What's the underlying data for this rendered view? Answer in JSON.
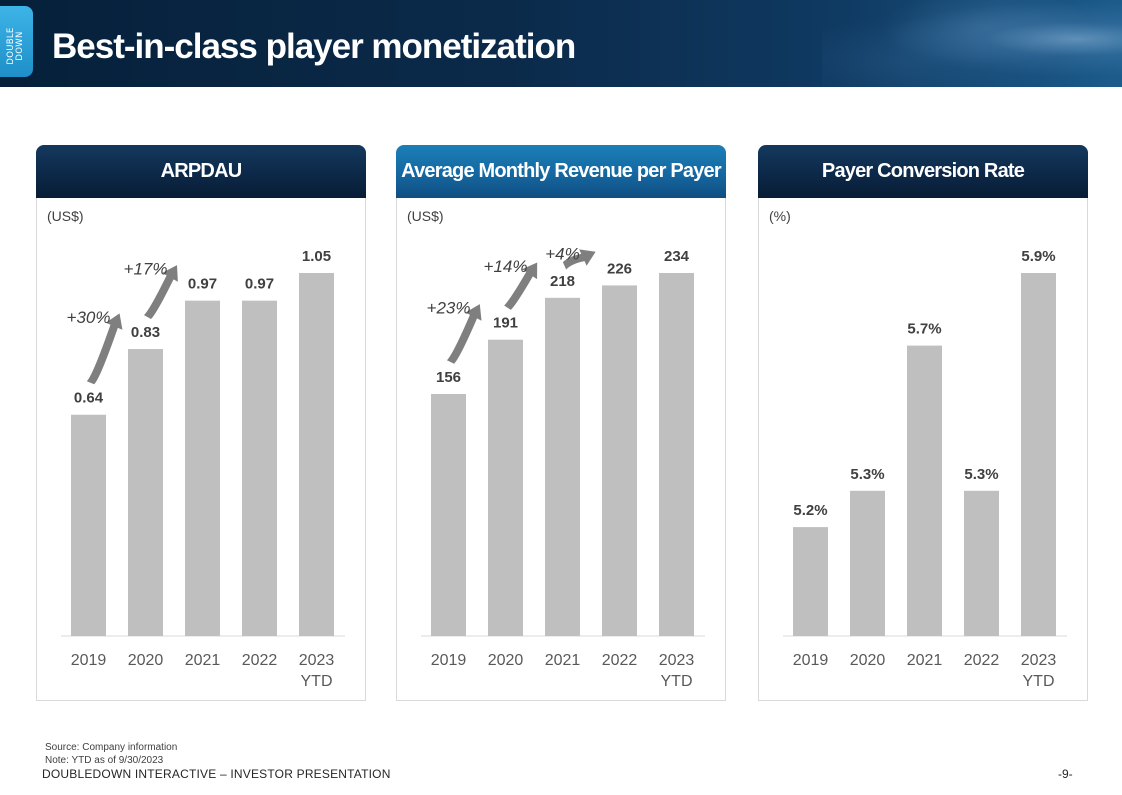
{
  "logo": {
    "text_line1": "DOUBLE",
    "text_line2": "DOWN"
  },
  "header": {
    "title": "Best-in-class player monetization"
  },
  "colors": {
    "bar": "#bfbfbf",
    "header_navy": "#0c2746",
    "header_blue": "#1567a0",
    "arrow": "#7f7f7f"
  },
  "chart_data": [
    {
      "type": "bar",
      "title": "ARPDAU",
      "unit": "(US$)",
      "categories": [
        "2019",
        "2020",
        "2021",
        "2022",
        "2023\nYTD"
      ],
      "values": [
        0.64,
        0.83,
        0.97,
        0.97,
        1.05
      ],
      "labels": [
        "0.64",
        "0.83",
        "0.97",
        "0.97",
        "1.05"
      ],
      "annotations": [
        {
          "from": 0,
          "to": 1,
          "text": "+30%"
        },
        {
          "from": 1,
          "to": 2,
          "text": "+17%"
        }
      ],
      "ylim": [
        0,
        1.05
      ]
    },
    {
      "type": "bar",
      "title": "Average Monthly Revenue per Payer",
      "unit": "(US$)",
      "categories": [
        "2019",
        "2020",
        "2021",
        "2022",
        "2023\nYTD"
      ],
      "values": [
        156,
        191,
        218,
        226,
        234
      ],
      "labels": [
        "156",
        "191",
        "218",
        "226",
        "234"
      ],
      "annotations": [
        {
          "from": 0,
          "to": 1,
          "text": "+23%"
        },
        {
          "from": 1,
          "to": 2,
          "text": "+14%"
        },
        {
          "from": 2,
          "to": 3,
          "text": "+4%"
        }
      ],
      "ylim": [
        0,
        234
      ]
    },
    {
      "type": "bar",
      "title": "Payer Conversion Rate",
      "unit": "(%)",
      "categories": [
        "2019",
        "2020",
        "2021",
        "2022",
        "2023\nYTD"
      ],
      "values": [
        5.2,
        5.3,
        5.7,
        5.3,
        5.9
      ],
      "labels": [
        "5.2%",
        "5.3%",
        "5.7%",
        "5.3%",
        "5.9%"
      ],
      "annotations": [],
      "ylim": [
        4.9,
        5.9
      ]
    }
  ],
  "footer": {
    "source": "Source: Company information",
    "note": "Note: YTD as of 9/30/2023",
    "company": "DOUBLEDOWN INTERACTIVE – INVESTOR PRESENTATION",
    "page": "-9-"
  }
}
